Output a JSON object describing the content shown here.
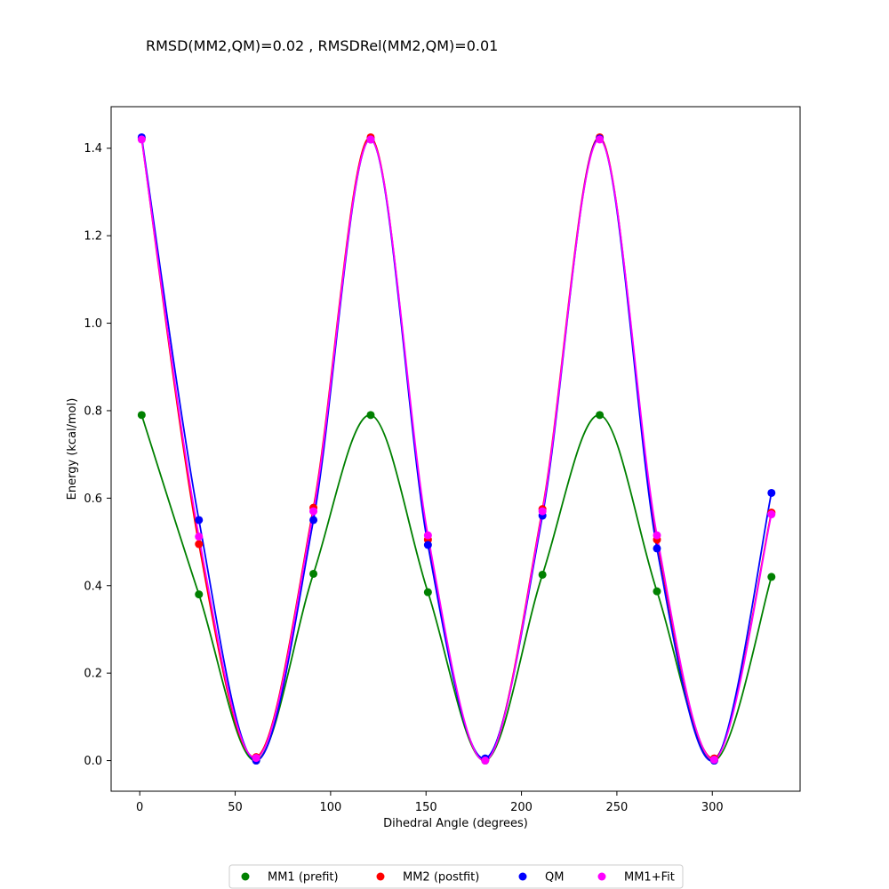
{
  "chart_data": {
    "type": "line",
    "title": "RMSD(MM2,QM)=0.02 , RMSDRel(MM2,QM)=0.01",
    "xlabel": "Dihedral Angle (degrees)",
    "ylabel": "Energy (kcal/mol)",
    "xlim": [
      -15,
      346
    ],
    "ylim": [
      -0.07,
      1.495
    ],
    "xticks": [
      0,
      50,
      100,
      150,
      200,
      250,
      300
    ],
    "yticks": [
      0.0,
      0.2,
      0.4,
      0.6,
      0.8,
      1.0,
      1.2,
      1.4
    ],
    "xtick_labels": [
      "0",
      "50",
      "100",
      "150",
      "200",
      "250",
      "300"
    ],
    "ytick_labels": [
      "0.0",
      "0.2",
      "0.4",
      "0.6",
      "0.8",
      "1.0",
      "1.2",
      "1.4"
    ],
    "x": [
      1,
      31,
      61,
      91,
      121,
      151,
      181,
      211,
      241,
      271,
      301,
      331
    ],
    "legend_position": "bottom-center",
    "series": [
      {
        "name": "MM1 (prefit)",
        "color": "#008000",
        "values": [
          0.79,
          0.38,
          0.0,
          0.427,
          0.79,
          0.385,
          0.0,
          0.425,
          0.79,
          0.387,
          0.0,
          0.42
        ]
      },
      {
        "name": "MM2 (postfit)",
        "color": "#ff0000",
        "values": [
          1.422,
          0.495,
          0.008,
          0.578,
          1.425,
          0.505,
          0.002,
          0.575,
          1.425,
          0.505,
          0.005,
          0.567
        ]
      },
      {
        "name": "QM",
        "color": "#0000ff",
        "values": [
          1.425,
          0.55,
          0.0,
          0.55,
          1.42,
          0.493,
          0.005,
          0.56,
          1.422,
          0.485,
          0.0,
          0.612
        ]
      },
      {
        "name": "MM1+Fit",
        "color": "#ff00ff",
        "values": [
          1.42,
          0.512,
          0.006,
          0.57,
          1.42,
          0.515,
          0.0,
          0.57,
          1.42,
          0.515,
          0.002,
          0.563
        ]
      }
    ]
  }
}
